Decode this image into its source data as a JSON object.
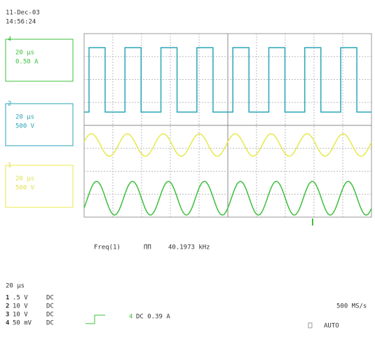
{
  "header": {
    "date": "11-Dec-03",
    "time": "14:56:24"
  },
  "traces": [
    {
      "id": "4",
      "timebase": "20 µs",
      "scale": "0.50 A"
    },
    {
      "id": "2",
      "timebase": "20 µs",
      "scale": "500 V"
    },
    {
      "id": "1",
      "timebase": "20 µs",
      "scale": "500 V"
    }
  ],
  "measurement": {
    "name": "Freq(1)",
    "symbol": "ΠΠ",
    "value": "40.1973 kHz"
  },
  "status": {
    "timebase": "20 µs",
    "channels": [
      {
        "id": "1",
        "scale": ".5 V",
        "coupling": "DC"
      },
      {
        "id": "2",
        "scale": "10 V",
        "coupling": "DC"
      },
      {
        "id": "3",
        "scale": "10 V",
        "coupling": "DC"
      },
      {
        "id": "4",
        "scale": "50 mV",
        "coupling": "DC"
      }
    ],
    "trigger_channel": "4",
    "trigger": "DC 0.39 A",
    "sample_rate": "500 MS/s",
    "mode": "AUTO"
  }
}
